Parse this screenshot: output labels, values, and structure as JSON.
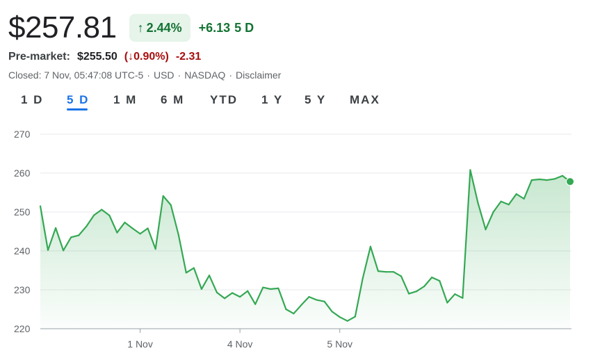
{
  "quote": {
    "price": "$257.81",
    "change_pct": "2.44%",
    "change_abs": "+6.13",
    "period": "5 D",
    "colors": {
      "up": "#137333",
      "up_bg": "#e6f4ea",
      "down": "#a50e0e"
    }
  },
  "premarket": {
    "label": "Pre-market:",
    "price": "$255.50",
    "change_pct": "0.90%",
    "change_abs": "-2.31"
  },
  "meta": {
    "closed": "Closed: 7 Nov, 05:47:08 UTC-5",
    "currency": "USD",
    "exchange": "NASDAQ",
    "disclaimer": "Disclaimer"
  },
  "tabs": [
    {
      "label": "1 D"
    },
    {
      "label": "5 D",
      "active": true
    },
    {
      "label": "1 M"
    },
    {
      "label": "6 M"
    },
    {
      "label": "YTD"
    },
    {
      "label": "1 Y"
    },
    {
      "label": "5 Y"
    },
    {
      "label": "MAX"
    }
  ],
  "chart_data": {
    "type": "area",
    "title": "",
    "xlabel": "",
    "ylabel": "",
    "ylim": [
      220,
      270
    ],
    "y_ticks": [
      220,
      230,
      240,
      250,
      260,
      270
    ],
    "x_ticks": [
      {
        "label": "1 Nov",
        "index": 13
      },
      {
        "label": "4 Nov",
        "index": 26
      },
      {
        "label": "5 Nov",
        "index": 39
      }
    ],
    "grid": true,
    "line_color": "#34a853",
    "series": [
      {
        "values": [
          251.5,
          240.2,
          245.9,
          240.1,
          243.5,
          244.0,
          246.3,
          249.2,
          250.6,
          249.1,
          244.7,
          247.3,
          245.8,
          244.4,
          245.8,
          240.5,
          254.1,
          251.8,
          244.1,
          234.4,
          235.6,
          230.2,
          233.7,
          229.3,
          227.8,
          229.2,
          228.2,
          229.7,
          226.3,
          230.6,
          230.2,
          230.4,
          225.0,
          223.9,
          226.1,
          228.2,
          227.4,
          227.0,
          224.4,
          223.0,
          222.0,
          223.1,
          233.0,
          241.1,
          234.8,
          234.6,
          234.6,
          233.5,
          229.0,
          229.6,
          230.9,
          233.2,
          232.3,
          226.7,
          228.9,
          227.9,
          260.8,
          252.3,
          245.5,
          250.0,
          252.7,
          251.9,
          254.6,
          253.4,
          258.2,
          258.4,
          258.2,
          258.5,
          259.3,
          257.81
        ]
      }
    ]
  }
}
